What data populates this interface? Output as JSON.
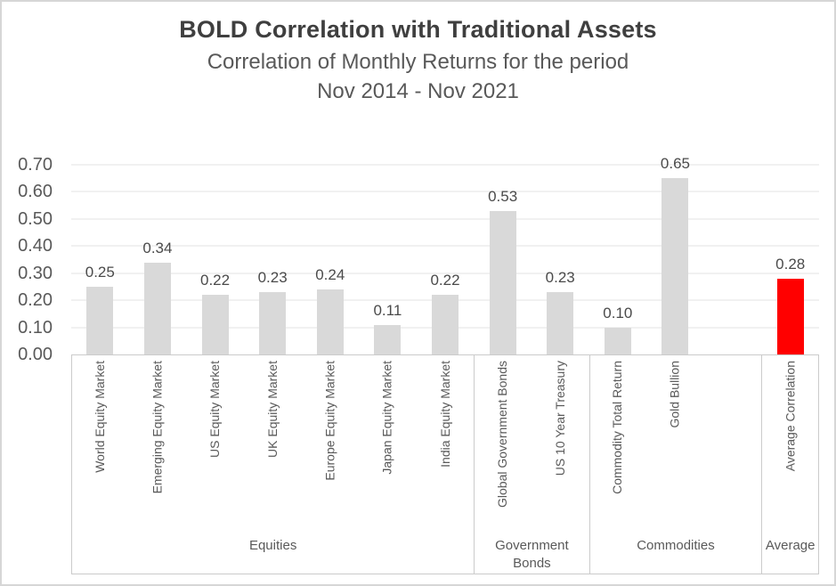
{
  "page": {
    "title": "BOLD Correlation with Traditional Assets",
    "subtitle_line1": "Correlation of Monthly Returns for the period",
    "subtitle_line2": "Nov 2014 - Nov 2021"
  },
  "chart_data": {
    "type": "bar",
    "title": "BOLD Correlation with Traditional Assets",
    "subtitle": "Correlation of Monthly Returns for the period Nov 2014 - Nov 2021",
    "categories": [
      "World Equity Market",
      "Emerging Equity Market",
      "US Equity Market",
      "UK Equity Market",
      "Europe Equity Market",
      "Japan Equity Market",
      "India Equity Market",
      "Global Government Bonds",
      "US 10 Year Treasury",
      "Commodity Total Return",
      "Gold Bullion",
      "Average Correlation"
    ],
    "values": [
      0.25,
      0.34,
      0.22,
      0.23,
      0.24,
      0.11,
      0.22,
      0.53,
      0.23,
      0.1,
      0.65,
      0.28
    ],
    "value_labels": [
      "0.25",
      "0.34",
      "0.22",
      "0.23",
      "0.24",
      "0.11",
      "0.22",
      "0.53",
      "0.23",
      "0.10",
      "0.65",
      "0.28"
    ],
    "slot_index": [
      0,
      1,
      2,
      3,
      4,
      5,
      6,
      7,
      8,
      9,
      10,
      12
    ],
    "total_slots": 13,
    "groups": [
      {
        "label": "Equities",
        "slots": 7
      },
      {
        "label": "Government Bonds",
        "slots": 2
      },
      {
        "label": "Commodities",
        "slots": 3
      },
      {
        "label": "Average",
        "slots": 1
      }
    ],
    "xlabel": "",
    "ylabel": "",
    "ylim": [
      0,
      0.7
    ],
    "ytick_step": 0.1,
    "yticks": [
      "0.00",
      "0.10",
      "0.20",
      "0.30",
      "0.40",
      "0.50",
      "0.60",
      "0.70"
    ],
    "grid": "horizontal",
    "legend": "none",
    "bar_color_default": "#D9D9D9",
    "bar_color_highlight": "#FF0000",
    "highlight_category": "Average Correlation",
    "colors": [
      "#D9D9D9",
      "#D9D9D9",
      "#D9D9D9",
      "#D9D9D9",
      "#D9D9D9",
      "#D9D9D9",
      "#D9D9D9",
      "#D9D9D9",
      "#D9D9D9",
      "#D9D9D9",
      "#D9D9D9",
      "#FF0000"
    ]
  }
}
